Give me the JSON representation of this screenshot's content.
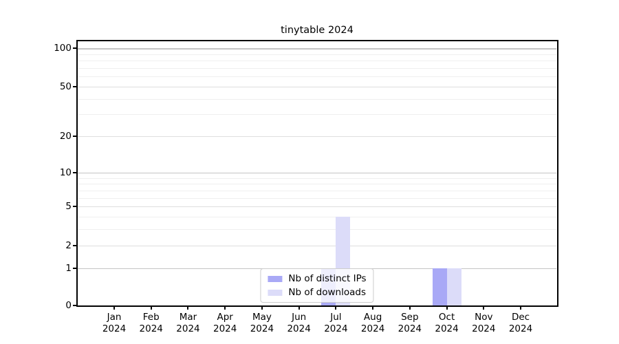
{
  "title": "tinytable 2024",
  "chart_data": {
    "type": "bar",
    "title": "tinytable 2024",
    "categories": [
      "Jan",
      "Feb",
      "Mar",
      "Apr",
      "May",
      "Jun",
      "Jul",
      "Aug",
      "Sep",
      "Oct",
      "Nov",
      "Dec"
    ],
    "xtick_year_line": "2024",
    "series": [
      {
        "name": "Nb of distinct IPs",
        "color": "#a9a9f6",
        "values": [
          0,
          0,
          0,
          0,
          0,
          0,
          1,
          0,
          0,
          1,
          0,
          0
        ]
      },
      {
        "name": "Nb of downloads",
        "color": "#dcdcf9",
        "values": [
          0,
          0,
          0,
          0,
          0,
          0,
          4,
          0,
          0,
          1,
          0,
          0
        ]
      }
    ],
    "xlabel": "",
    "ylabel": "",
    "yscale": "log10(y+1)",
    "ylim": [
      0,
      113
    ],
    "y_ticks": [
      100,
      50,
      20,
      10,
      5,
      2,
      1,
      0
    ],
    "y_minor_ticks": [
      3,
      4,
      6,
      7,
      8,
      9,
      30,
      40,
      60,
      70,
      80,
      90
    ],
    "grid": "horizontal",
    "legend_position": "lower center, inside plot",
    "colors": {
      "spine": "#000000",
      "grid_power10": "#c4c4c4",
      "grid_major": "#dedede",
      "grid_minor": "#efefef",
      "legend_border": "#cccccc"
    }
  }
}
